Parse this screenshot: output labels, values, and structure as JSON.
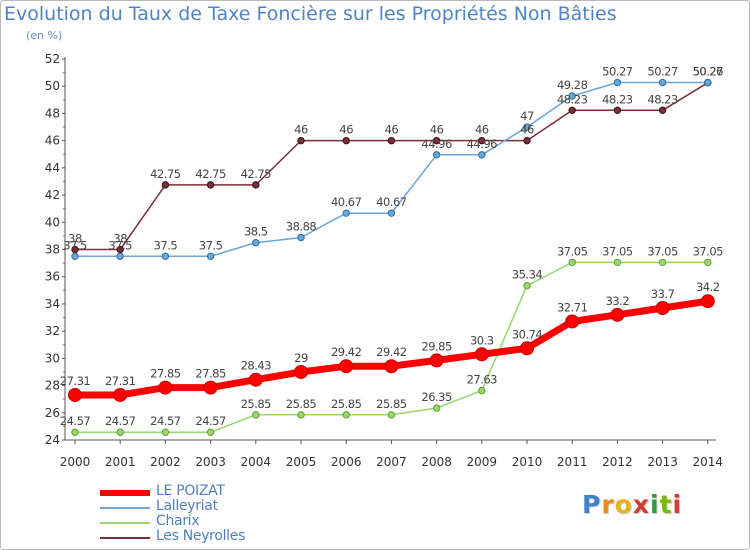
{
  "title": "Evolution du Taux de Taxe Foncière sur les Propriétés Non Bâties",
  "subtitle": "(en %)",
  "logo": {
    "text": "Proxiti",
    "letter_colors": [
      "#3f82c7",
      "#f08a1c",
      "#e8b21c",
      "#d43a2f",
      "#2f9e44",
      "#7ab800",
      "#d43a2f"
    ]
  },
  "chart_data": {
    "type": "line",
    "title": "Evolution du Taux de Taxe Foncière sur les Propriétés Non Bâties",
    "ylabel": "(en %)",
    "xlabel": "",
    "ylim": [
      24,
      52
    ],
    "yticks": [
      "24",
      "26",
      "28",
      "30",
      "32",
      "34",
      "36",
      "38",
      "40",
      "42",
      "44",
      "46",
      "48",
      "50",
      "52"
    ],
    "categories": [
      "2000",
      "2001",
      "2002",
      "2003",
      "2004",
      "2005",
      "2006",
      "2007",
      "2008",
      "2009",
      "2010",
      "2011",
      "2012",
      "2013",
      "2014"
    ],
    "grid": false,
    "legend": "bottom-left",
    "series": [
      {
        "name": "LE POIZAT",
        "color": "#ff0000",
        "values": [
          27.31,
          27.31,
          27.85,
          27.85,
          28.43,
          29,
          29.42,
          29.42,
          29.85,
          30.3,
          30.74,
          32.71,
          33.2,
          33.7,
          34.2
        ],
        "labels": [
          "27.31",
          "27.31",
          "27.85",
          "27.85",
          "28.43",
          "29",
          "29.42",
          "29.42",
          "29.85",
          "30.3",
          "30.74",
          "32.71",
          "33.2",
          "33.7",
          "34.2"
        ]
      },
      {
        "name": "Lalleyriat",
        "color": "#6aa6d8",
        "values": [
          37.5,
          37.5,
          37.5,
          37.5,
          38.5,
          38.88,
          40.67,
          40.67,
          44.96,
          44.96,
          47,
          49.28,
          50.27,
          50.27,
          50.27
        ],
        "labels": [
          "37.5",
          "37.5",
          "37.5",
          "37.5",
          "38.5",
          "38.88",
          "40.67",
          "40.67",
          "44.96",
          "44.96",
          "47",
          "49.28",
          "50.27",
          "50.27",
          "50.27"
        ]
      },
      {
        "name": "Charix",
        "color": "#99d66b",
        "values": [
          24.57,
          24.57,
          24.57,
          24.57,
          25.85,
          25.85,
          25.85,
          25.85,
          26.35,
          27.63,
          35.34,
          37.05,
          37.05,
          37.05,
          37.05
        ],
        "labels": [
          "24.57",
          "24.57",
          "24.57",
          "24.57",
          "25.85",
          "25.85",
          "25.85",
          "25.85",
          "26.35",
          "27.63",
          "35.34",
          "37.05",
          "37.05",
          "37.05",
          "37.05"
        ]
      },
      {
        "name": "Les Neyrolles",
        "color": "#7a2e36",
        "values": [
          38,
          38,
          42.75,
          42.75,
          42.75,
          46,
          46,
          46,
          46,
          46,
          46,
          48.23,
          48.23,
          48.23,
          50.26
        ],
        "labels": [
          "38",
          "38",
          "42.75",
          "42.75",
          "42.75",
          "46",
          "46",
          "46",
          "46",
          "46",
          "46",
          "48.23",
          "48.23",
          "48.23",
          "50.26"
        ]
      }
    ]
  }
}
